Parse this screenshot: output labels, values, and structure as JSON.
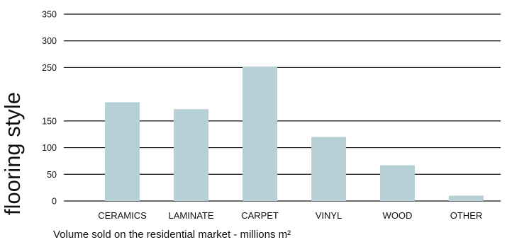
{
  "chart_data": {
    "type": "bar",
    "categories": [
      "CERAMICS",
      "LAMINATE",
      "CARPET",
      "VINYL",
      "WOOD",
      "OTHER"
    ],
    "values": [
      185,
      172,
      252,
      120,
      67,
      10
    ],
    "ylabel": "flooring style",
    "xlabel": "Volume sold on the residential market - millions m²",
    "ylim": [
      0,
      350
    ],
    "yticks": [
      350,
      300,
      250,
      150,
      100,
      50,
      0
    ],
    "grid": true,
    "colors": {
      "bar": "#b7d0d6",
      "grid": "#111111",
      "text": "#111111"
    }
  }
}
